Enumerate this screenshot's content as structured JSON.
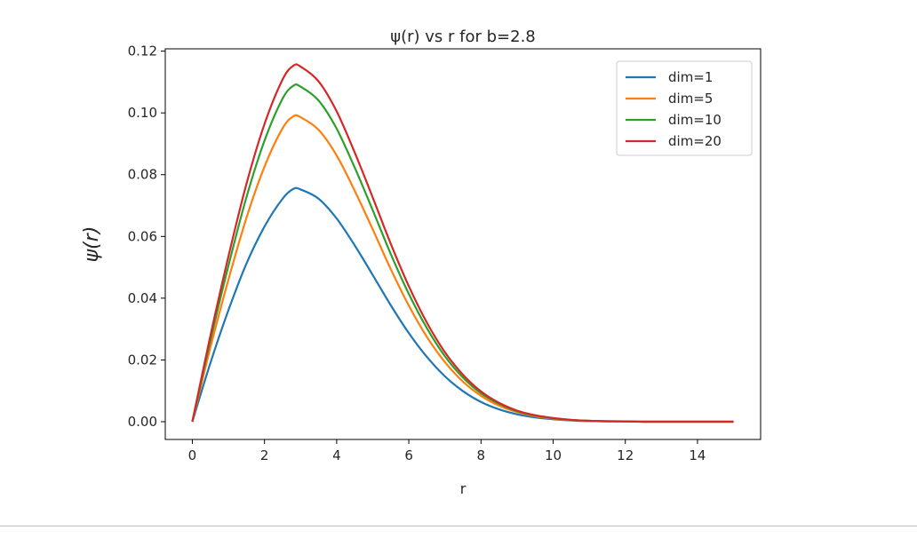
{
  "chart_data": {
    "type": "line",
    "title": "ψ(r) vs r for b=2.8",
    "xlabel": "r",
    "ylabel": "ψ(r)",
    "xlim": [
      -0.75,
      15.75
    ],
    "ylim": [
      -0.00575,
      0.12075
    ],
    "xticks": [
      0,
      2,
      4,
      6,
      8,
      10,
      12,
      14
    ],
    "yticks": [
      0.0,
      0.02,
      0.04,
      0.06,
      0.08,
      0.1,
      0.12
    ],
    "xtick_labels": [
      "0",
      "2",
      "4",
      "6",
      "8",
      "10",
      "12",
      "14"
    ],
    "ytick_labels": [
      "0.00",
      "0.02",
      "0.04",
      "0.06",
      "0.08",
      "0.10",
      "0.12"
    ],
    "grid": false,
    "legend_position": "top-right",
    "x": [
      0,
      0.5,
      1,
      1.5,
      2,
      2.5,
      2.8,
      3,
      3.5,
      4,
      4.5,
      5,
      5.5,
      6,
      6.5,
      7,
      7.5,
      8,
      8.5,
      9,
      9.5,
      10,
      10.5,
      11,
      11.5,
      12,
      12.5,
      13,
      13.5,
      14,
      14.5,
      15
    ],
    "series": [
      {
        "name": "dim=1",
        "color": "#1f77b4",
        "values": [
          0,
          0.019,
          0.0361,
          0.0512,
          0.0632,
          0.0722,
          0.0754,
          0.0752,
          0.0722,
          0.0658,
          0.0571,
          0.0475,
          0.0377,
          0.0287,
          0.021,
          0.0147,
          0.0099,
          0.0064,
          0.004,
          0.0024,
          0.0014,
          0.0008,
          0.0004,
          0.0002,
          0.0001,
          0.0001,
          0,
          0,
          0,
          0,
          0,
          0
        ]
      },
      {
        "name": "dim=5",
        "color": "#ff7f0e",
        "values": [
          0,
          0.024,
          0.046,
          0.066,
          0.0826,
          0.095,
          0.0989,
          0.0986,
          0.0945,
          0.0862,
          0.0748,
          0.0623,
          0.0494,
          0.0376,
          0.0275,
          0.0193,
          0.013,
          0.0084,
          0.0052,
          0.0031,
          0.0018,
          0.001,
          0.0005,
          0.0003,
          0.0001,
          0.0001,
          0,
          0,
          0,
          0,
          0,
          0
        ]
      },
      {
        "name": "dim=10",
        "color": "#2ca02c",
        "values": [
          0,
          0.0263,
          0.0505,
          0.0727,
          0.091,
          0.1046,
          0.1088,
          0.1085,
          0.104,
          0.0949,
          0.0823,
          0.0685,
          0.0543,
          0.0414,
          0.0303,
          0.0212,
          0.0143,
          0.0092,
          0.0058,
          0.0034,
          0.002,
          0.0011,
          0.0006,
          0.0003,
          0.0001,
          0.0001,
          0,
          0,
          0,
          0,
          0,
          0
        ]
      },
      {
        "name": "dim=20",
        "color": "#d62728",
        "values": [
          0,
          0.0278,
          0.0535,
          0.077,
          0.0964,
          0.1108,
          0.1153,
          0.115,
          0.1102,
          0.1005,
          0.0872,
          0.0726,
          0.0576,
          0.0439,
          0.0321,
          0.0225,
          0.0152,
          0.0098,
          0.0061,
          0.0036,
          0.0021,
          0.0012,
          0.0006,
          0.0003,
          0.0002,
          0.0001,
          0,
          0,
          0,
          0,
          0,
          0
        ]
      }
    ]
  }
}
